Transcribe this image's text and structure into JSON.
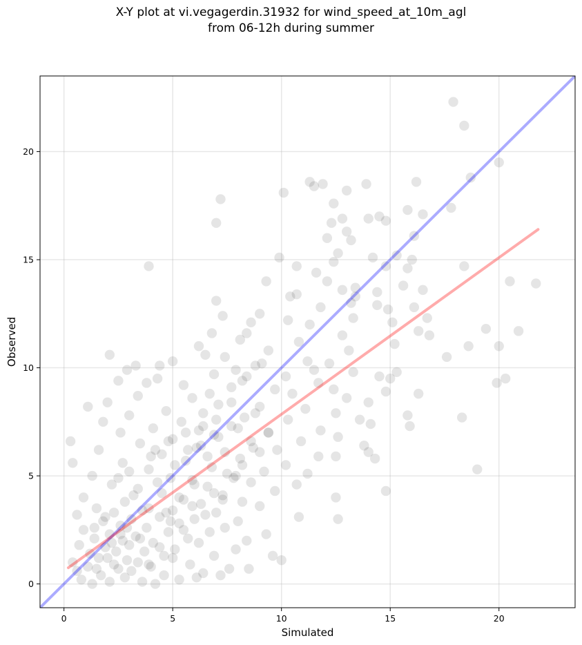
{
  "chart_data": {
    "type": "scatter",
    "title": "X-Y plot at vi.vegagerdin.31932 for wind_speed_at_10m_agl",
    "subtitle": "from 06-12h during summer",
    "xlabel": "Simulated",
    "ylabel": "Observed",
    "xlim": [
      -1.1,
      23.5
    ],
    "ylim": [
      -1.1,
      23.5
    ],
    "xticks": [
      0,
      5,
      10,
      15,
      20
    ],
    "yticks": [
      0,
      5,
      10,
      15,
      20
    ],
    "grid": true,
    "point_color": "#000000",
    "point_alpha": 0.1,
    "identity_line": {
      "x": [
        -1.1,
        23.5
      ],
      "y": [
        -1.1,
        23.5
      ],
      "color": "#0000ff"
    },
    "regression_line": {
      "x": [
        0.2,
        21.8
      ],
      "y": [
        0.75,
        16.4
      ],
      "color": "#ff0000"
    },
    "points": [
      [
        17.9,
        22.3
      ],
      [
        18.4,
        21.2
      ],
      [
        20.0,
        19.5
      ],
      [
        18.7,
        18.8
      ],
      [
        16.2,
        18.6
      ],
      [
        11.3,
        18.6
      ],
      [
        11.9,
        18.5
      ],
      [
        13.9,
        18.5
      ],
      [
        11.5,
        18.4
      ],
      [
        10.1,
        18.1
      ],
      [
        13.0,
        18.2
      ],
      [
        7.2,
        17.8
      ],
      [
        12.4,
        17.6
      ],
      [
        17.8,
        17.4
      ],
      [
        15.8,
        17.3
      ],
      [
        16.5,
        17.1
      ],
      [
        14.5,
        17.0
      ],
      [
        14.0,
        16.9
      ],
      [
        12.8,
        16.9
      ],
      [
        12.3,
        16.7
      ],
      [
        7.0,
        16.7
      ],
      [
        14.8,
        16.8
      ],
      [
        13.0,
        16.3
      ],
      [
        12.1,
        16.0
      ],
      [
        16.1,
        16.1
      ],
      [
        13.2,
        15.9
      ],
      [
        12.6,
        15.3
      ],
      [
        15.3,
        15.2
      ],
      [
        14.2,
        15.1
      ],
      [
        9.9,
        15.1
      ],
      [
        16.0,
        15.0
      ],
      [
        12.4,
        14.9
      ],
      [
        14.8,
        14.7
      ],
      [
        18.4,
        14.7
      ],
      [
        10.7,
        14.7
      ],
      [
        3.9,
        14.7
      ],
      [
        15.8,
        14.6
      ],
      [
        11.6,
        14.4
      ],
      [
        12.1,
        14.0
      ],
      [
        20.5,
        14.0
      ],
      [
        9.3,
        14.0
      ],
      [
        21.7,
        13.9
      ],
      [
        15.6,
        13.8
      ],
      [
        16.5,
        13.6
      ],
      [
        13.4,
        13.7
      ],
      [
        12.8,
        13.6
      ],
      [
        14.4,
        13.5
      ],
      [
        10.7,
        13.4
      ],
      [
        10.4,
        13.3
      ],
      [
        13.4,
        13.3
      ],
      [
        7.0,
        13.1
      ],
      [
        13.2,
        13.0
      ],
      [
        14.4,
        12.9
      ],
      [
        11.8,
        12.8
      ],
      [
        16.1,
        12.8
      ],
      [
        14.9,
        12.7
      ],
      [
        9.0,
        12.5
      ],
      [
        7.3,
        12.4
      ],
      [
        13.3,
        12.3
      ],
      [
        16.7,
        12.3
      ],
      [
        10.3,
        12.2
      ],
      [
        15.1,
        12.1
      ],
      [
        8.6,
        12.1
      ],
      [
        11.3,
        12.0
      ],
      [
        19.4,
        11.8
      ],
      [
        16.3,
        11.7
      ],
      [
        20.9,
        11.7
      ],
      [
        8.4,
        11.6
      ],
      [
        6.8,
        11.6
      ],
      [
        12.8,
        11.5
      ],
      [
        16.8,
        11.5
      ],
      [
        8.1,
        11.3
      ],
      [
        10.8,
        11.2
      ],
      [
        15.2,
        11.1
      ],
      [
        18.6,
        11.0
      ],
      [
        20.0,
        11.0
      ],
      [
        6.2,
        11.0
      ],
      [
        9.4,
        10.8
      ],
      [
        13.1,
        10.8
      ],
      [
        6.5,
        10.6
      ],
      [
        2.1,
        10.6
      ],
      [
        7.4,
        10.5
      ],
      [
        17.6,
        10.5
      ],
      [
        11.2,
        10.3
      ],
      [
        5.0,
        10.3
      ],
      [
        12.2,
        10.2
      ],
      [
        3.3,
        10.1
      ],
      [
        4.4,
        10.1
      ],
      [
        8.8,
        10.1
      ],
      [
        11.5,
        9.9
      ],
      [
        2.9,
        9.9
      ],
      [
        13.3,
        9.8
      ],
      [
        15.3,
        9.8
      ],
      [
        6.9,
        9.7
      ],
      [
        10.2,
        9.6
      ],
      [
        14.5,
        9.6
      ],
      [
        4.3,
        9.5
      ],
      [
        20.3,
        9.5
      ],
      [
        8.2,
        9.4
      ],
      [
        15.0,
        9.5
      ],
      [
        2.5,
        9.4
      ],
      [
        19.9,
        9.3
      ],
      [
        11.7,
        9.3
      ],
      [
        3.8,
        9.3
      ],
      [
        5.5,
        9.2
      ],
      [
        7.7,
        9.1
      ],
      [
        12.4,
        9.0
      ],
      [
        9.7,
        9.0
      ],
      [
        14.8,
        8.9
      ],
      [
        16.3,
        8.8
      ],
      [
        10.5,
        8.8
      ],
      [
        3.4,
        8.7
      ],
      [
        5.9,
        8.6
      ],
      [
        13.0,
        8.6
      ],
      [
        14.0,
        8.4
      ],
      [
        2.0,
        8.4
      ],
      [
        7.1,
        8.3
      ],
      [
        1.1,
        8.2
      ],
      [
        9.0,
        8.2
      ],
      [
        11.1,
        8.1
      ],
      [
        4.7,
        8.0
      ],
      [
        12.5,
        7.9
      ],
      [
        6.4,
        7.9
      ],
      [
        3.0,
        7.8
      ],
      [
        15.8,
        7.8
      ],
      [
        8.3,
        7.7
      ],
      [
        18.3,
        7.7
      ],
      [
        10.3,
        7.6
      ],
      [
        13.6,
        7.6
      ],
      [
        5.4,
        7.5
      ],
      [
        1.8,
        7.5
      ],
      [
        14.1,
        7.4
      ],
      [
        7.7,
        7.3
      ],
      [
        15.9,
        7.3
      ],
      [
        4.1,
        7.2
      ],
      [
        11.8,
        7.1
      ],
      [
        9.4,
        7.0
      ],
      [
        2.6,
        7.0
      ],
      [
        6.9,
        6.9
      ],
      [
        12.6,
        6.8
      ],
      [
        5.0,
        6.7
      ],
      [
        8.6,
        6.6
      ],
      [
        0.3,
        6.6
      ],
      [
        10.9,
        6.6
      ],
      [
        3.5,
        6.5
      ],
      [
        13.8,
        6.4
      ],
      [
        6.1,
        6.3
      ],
      [
        9.8,
        6.2
      ],
      [
        1.6,
        6.2
      ],
      [
        7.4,
        6.1
      ],
      [
        14.0,
        6.1
      ],
      [
        4.5,
        6.0
      ],
      [
        11.7,
        5.9
      ],
      [
        12.5,
        5.9
      ],
      [
        8.1,
        5.8
      ],
      [
        14.3,
        5.8
      ],
      [
        5.6,
        5.7
      ],
      [
        2.7,
        5.6
      ],
      [
        0.4,
        5.6
      ],
      [
        10.2,
        5.5
      ],
      [
        6.8,
        5.4
      ],
      [
        3.9,
        5.3
      ],
      [
        19.0,
        5.3
      ],
      [
        9.2,
        5.2
      ],
      [
        11.2,
        5.1
      ],
      [
        1.3,
        5.0
      ],
      [
        7.9,
        5.0
      ],
      [
        4.9,
        4.9
      ],
      [
        5.9,
        4.8
      ],
      [
        8.6,
        4.7
      ],
      [
        10.7,
        4.6
      ],
      [
        2.2,
        4.6
      ],
      [
        6.6,
        4.5
      ],
      [
        3.4,
        4.4
      ],
      [
        9.7,
        4.3
      ],
      [
        14.8,
        4.3
      ],
      [
        4.5,
        4.2
      ],
      [
        7.3,
        4.1
      ],
      [
        0.9,
        4.0
      ],
      [
        12.5,
        4.0
      ],
      [
        5.5,
        3.9
      ],
      [
        2.8,
        3.8
      ],
      [
        8.2,
        3.8
      ],
      [
        6.3,
        3.7
      ],
      [
        9.0,
        3.6
      ],
      [
        3.9,
        3.5
      ],
      [
        1.5,
        3.5
      ],
      [
        5.0,
        3.4
      ],
      [
        7.0,
        3.3
      ],
      [
        2.3,
        3.3
      ],
      [
        0.6,
        3.2
      ],
      [
        4.4,
        3.1
      ],
      [
        10.8,
        3.1
      ],
      [
        6.0,
        3.0
      ],
      [
        3.1,
        3.0
      ],
      [
        12.6,
        3.0
      ],
      [
        8.0,
        2.9
      ],
      [
        1.8,
        2.9
      ],
      [
        5.3,
        2.8
      ],
      [
        2.6,
        2.7
      ],
      [
        7.4,
        2.6
      ],
      [
        3.8,
        2.6
      ],
      [
        0.9,
        2.5
      ],
      [
        4.8,
        2.4
      ],
      [
        6.7,
        2.4
      ],
      [
        9.3,
        2.3
      ],
      [
        2.1,
        2.3
      ],
      [
        3.3,
        2.2
      ],
      [
        5.7,
        2.1
      ],
      [
        1.4,
        2.1
      ],
      [
        8.4,
        2.0
      ],
      [
        2.7,
        2.0
      ],
      [
        4.1,
        1.9
      ],
      [
        6.2,
        1.9
      ],
      [
        0.7,
        1.8
      ],
      [
        3.0,
        1.8
      ],
      [
        1.9,
        1.7
      ],
      [
        5.1,
        1.6
      ],
      [
        7.9,
        1.6
      ],
      [
        2.4,
        1.5
      ],
      [
        3.7,
        1.5
      ],
      [
        1.2,
        1.4
      ],
      [
        4.6,
        1.3
      ],
      [
        6.9,
        1.3
      ],
      [
        2.0,
        1.2
      ],
      [
        1.6,
        1.2
      ],
      [
        2.9,
        1.1
      ],
      [
        3.4,
        1.0
      ],
      [
        9.6,
        1.3
      ],
      [
        10.0,
        1.1
      ],
      [
        0.4,
        1.0
      ],
      [
        5.8,
        0.9
      ],
      [
        4.0,
        0.8
      ],
      [
        1.1,
        0.8
      ],
      [
        2.5,
        0.7
      ],
      [
        7.6,
        0.7
      ],
      [
        3.1,
        0.6
      ],
      [
        6.4,
        0.5
      ],
      [
        1.7,
        0.4
      ],
      [
        4.6,
        0.4
      ],
      [
        2.8,
        0.3
      ],
      [
        5.3,
        0.2
      ],
      [
        0.8,
        0.2
      ],
      [
        2.1,
        0.1
      ],
      [
        3.6,
        0.1
      ],
      [
        1.3,
        0.0
      ],
      [
        4.2,
        0.0
      ],
      [
        6.1,
        0.3
      ],
      [
        7.2,
        0.4
      ],
      [
        0.6,
        0.6
      ],
      [
        8.5,
        0.7
      ],
      [
        5.5,
        2.5
      ],
      [
        6.0,
        4.6
      ],
      [
        6.6,
        5.9
      ],
      [
        7.1,
        6.8
      ],
      [
        5.3,
        4.0
      ],
      [
        4.7,
        3.3
      ],
      [
        6.9,
        4.2
      ],
      [
        7.5,
        5.1
      ],
      [
        6.3,
        6.4
      ],
      [
        8.0,
        7.2
      ],
      [
        8.7,
        6.3
      ],
      [
        7.8,
        4.9
      ],
      [
        5.9,
        3.6
      ],
      [
        4.9,
        2.9
      ],
      [
        6.5,
        3.2
      ],
      [
        7.3,
        3.9
      ],
      [
        8.2,
        5.5
      ],
      [
        9.0,
        6.1
      ],
      [
        9.4,
        7.0
      ],
      [
        8.8,
        7.9
      ],
      [
        3.6,
        3.4
      ],
      [
        2.9,
        2.6
      ],
      [
        3.2,
        4.1
      ],
      [
        4.3,
        4.7
      ],
      [
        5.1,
        5.5
      ],
      [
        5.7,
        6.2
      ],
      [
        6.2,
        7.1
      ],
      [
        4.0,
        5.9
      ],
      [
        2.5,
        4.9
      ],
      [
        3.0,
        5.2
      ],
      [
        1.9,
        3.1
      ],
      [
        1.4,
        2.6
      ],
      [
        2.2,
        1.9
      ],
      [
        2.6,
        2.3
      ],
      [
        3.5,
        2.1
      ],
      [
        4.4,
        1.7
      ],
      [
        5.0,
        1.2
      ],
      [
        3.9,
        0.9
      ],
      [
        2.3,
        0.9
      ],
      [
        1.5,
        0.7
      ],
      [
        7.0,
        7.6
      ],
      [
        7.7,
        8.4
      ],
      [
        6.7,
        8.8
      ],
      [
        8.4,
        9.6
      ],
      [
        9.1,
        10.2
      ],
      [
        7.9,
        9.9
      ],
      [
        6.4,
        7.3
      ],
      [
        5.6,
        7.0
      ],
      [
        4.8,
        6.6
      ],
      [
        4.2,
        6.2
      ]
    ]
  }
}
